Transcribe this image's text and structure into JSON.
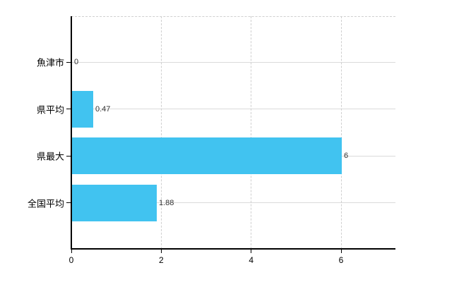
{
  "chart": {
    "background": "#ffffff",
    "bar_color": "#41c3f0",
    "axis_color": "#000000",
    "hgrid_color": "#dadada",
    "vgrid_color": "#cfcfcf"
  },
  "chart_data": {
    "type": "bar",
    "orientation": "horizontal",
    "title": "",
    "xlabel": "",
    "ylabel": "",
    "categories": [
      "魚津市",
      "県平均",
      "県最大",
      "全国平均"
    ],
    "values": [
      0,
      0.47,
      6,
      1.88
    ],
    "data_labels": [
      "0",
      "0.47",
      "6",
      "1.88"
    ],
    "x_ticks": [
      0,
      2,
      4,
      6
    ],
    "x_tick_labels": [
      "0",
      "2",
      "4",
      "6"
    ],
    "xlim": [
      0,
      7.2
    ],
    "grid": "horizontal solid per category, vertical dashed at ticks, dashed top border",
    "legend": "none"
  }
}
